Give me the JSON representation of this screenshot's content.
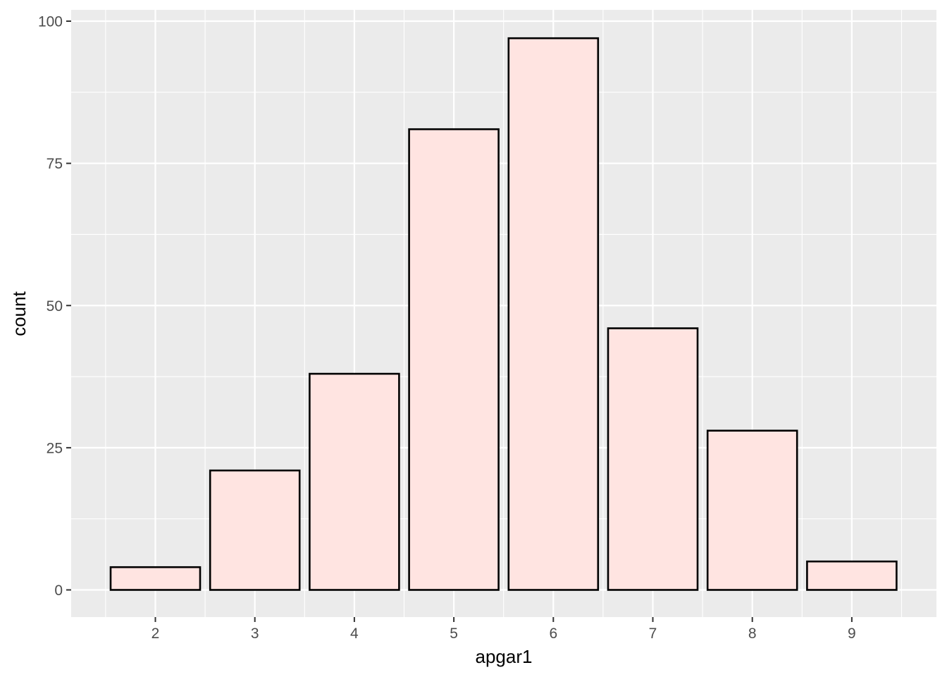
{
  "chart_data": {
    "type": "bar",
    "categories": [
      "2",
      "3",
      "4",
      "5",
      "6",
      "7",
      "8",
      "9"
    ],
    "values": [
      4,
      21,
      38,
      81,
      97,
      46,
      28,
      5
    ],
    "title": "",
    "xlabel": "apgar1",
    "ylabel": "count",
    "ylim": [
      0,
      100
    ],
    "yticks": [
      "0",
      "25",
      "50",
      "75",
      "100"
    ],
    "grid": true,
    "colors": {
      "panel_background": "#ebebeb",
      "grid": "#ffffff",
      "bar_fill": "#ffe4e1",
      "bar_stroke": "#000000",
      "tick_label": "#4d4d4d"
    }
  }
}
